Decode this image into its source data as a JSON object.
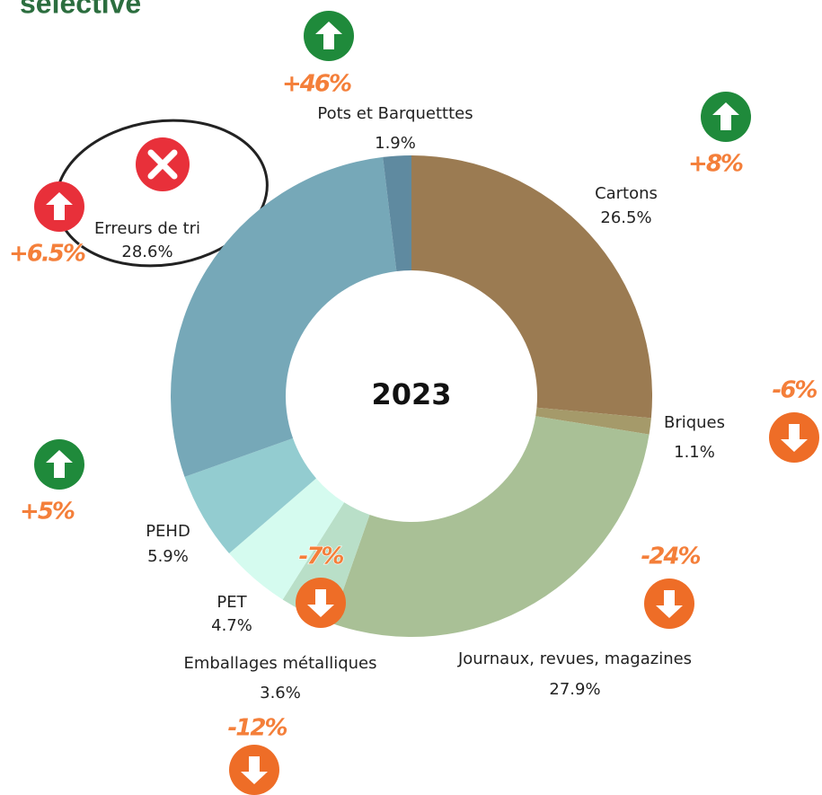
{
  "chart_data": {
    "type": "donut",
    "title": "sélective",
    "center_label": "2023",
    "categories": [
      "Cartons",
      "Briques",
      "Journaux, revues, magazines",
      "Emballages métalliques",
      "PET",
      "PEHD",
      "Erreurs de tri",
      "Pots et Barquetttes"
    ],
    "values": [
      26.5,
      1.1,
      27.9,
      3.6,
      4.7,
      5.9,
      28.6,
      1.9
    ],
    "value_labels": [
      "26.5%",
      "1.1%",
      "27.9%",
      "3.6%",
      "4.7%",
      "5.9%",
      "28.6%",
      "1.9%"
    ],
    "colors": [
      "#9b7b52",
      "#a59a6a",
      "#a9c096",
      "#b9dfc8",
      "#d5fbef",
      "#93ccd0",
      "#76a8b8",
      "#5f8aa0"
    ],
    "changes": [
      8,
      -6,
      -24,
      -12,
      -7,
      5,
      6.5,
      46
    ],
    "change_labels": [
      "+8%",
      "-6%",
      "-24%",
      "-12%",
      "-7%",
      "+5%",
      "+6.5%",
      "+46%"
    ],
    "badge_colors": [
      "#1f8a3b",
      "#ee6d27",
      "#ee6d27",
      "#ee6d27",
      "#ee6d27",
      "#1f8a3b",
      "#e8303a",
      "#1f8a3b"
    ]
  }
}
